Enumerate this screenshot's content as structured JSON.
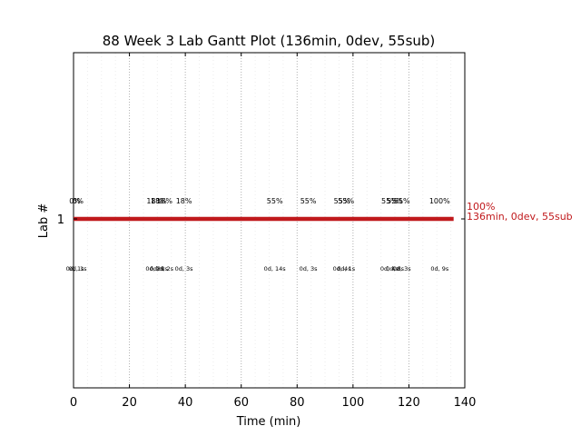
{
  "chart_data": {
    "type": "gantt",
    "title": "88 Week 3 Lab Gantt Plot (136min, 0dev, 55sub)",
    "xlabel": "Time (min)",
    "ylabel": "Lab #",
    "xlim": [
      0,
      140
    ],
    "x_ticks": [
      0,
      20,
      40,
      60,
      80,
      100,
      120,
      140
    ],
    "x_tick_labels": [
      "0",
      "20",
      "40",
      "60",
      "80",
      "100",
      "120",
      "140"
    ],
    "y_ticks": [
      1
    ],
    "y_tick_labels": [
      "1"
    ],
    "grid": "vertical dotted",
    "bar": {
      "lab": 1,
      "start": 0,
      "end": 136,
      "color": "#c0191c"
    },
    "end_label": {
      "line1": "100%",
      "line2": "136min, 0dev, 55sub",
      "color": "#c0191c"
    },
    "milestones": [
      {
        "x": 0.5,
        "pct": "0%",
        "dur": "0d, 1s"
      },
      {
        "x": 1.5,
        "pct": "0%",
        "dur": "0d, 1s"
      },
      {
        "x": 29.0,
        "pct": "18%",
        "dur": "0d, 8s"
      },
      {
        "x": 30.5,
        "pct": "18%",
        "dur": "0d, 8s"
      },
      {
        "x": 32.5,
        "pct": "18%",
        "dur": "0d, 2s"
      },
      {
        "x": 39.5,
        "pct": "18%",
        "dur": "0d, 3s"
      },
      {
        "x": 72.0,
        "pct": "55%",
        "dur": "0d, 14s"
      },
      {
        "x": 84.0,
        "pct": "55%",
        "dur": "0d, 3s"
      },
      {
        "x": 96.0,
        "pct": "55%",
        "dur": "0d, 4s"
      },
      {
        "x": 97.5,
        "pct": "55%",
        "dur": "0d, 1s"
      },
      {
        "x": 113.0,
        "pct": "55%",
        "dur": "0d, 4s"
      },
      {
        "x": 115.0,
        "pct": "55%",
        "dur": "0d, 8s"
      },
      {
        "x": 117.5,
        "pct": "55%",
        "dur": "0d, 3s"
      },
      {
        "x": 131.0,
        "pct": "100%",
        "dur": "0d, 9s"
      }
    ]
  }
}
